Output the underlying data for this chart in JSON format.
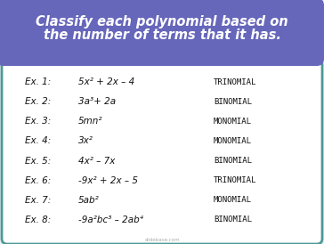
{
  "title_line1": "Classify each polynomial based on",
  "title_line2": "the number of terms that it has.",
  "title_bg_color": "#6666bb",
  "title_text_color": "#ffffff",
  "bg_color": "#ffffff",
  "outer_bg_color": "#f0f0f0",
  "border_color": "#4d9999",
  "examples": [
    {
      "label": "Ex. 1:",
      "expr": "5x² + 2x – 4",
      "answer": "TRINOMIAL"
    },
    {
      "label": "Ex. 2:",
      "expr": "3a³+ 2a",
      "answer": "BINOMIAL"
    },
    {
      "label": "Ex. 3:",
      "expr": "5mn²",
      "answer": "MONOMIAL"
    },
    {
      "label": "Ex. 4:",
      "expr": "3x²",
      "answer": "MONOMIAL"
    },
    {
      "label": "Ex. 5:",
      "expr": "4x² – 7x",
      "answer": "BINOMIAL"
    },
    {
      "label": "Ex. 6:",
      "expr": "-9x² + 2x – 5",
      "answer": "TRINOMIAL"
    },
    {
      "label": "Ex. 7:",
      "expr": "5ab²",
      "answer": "MONOMIAL"
    },
    {
      "label": "Ex. 8:",
      "expr": "-9a²bc³ – 2ab⁴",
      "answer": "BINOMIAL"
    }
  ],
  "label_fontsize": 7.5,
  "expr_fontsize": 7.5,
  "answer_fontsize": 6.5,
  "title_fontsize": 10.5,
  "watermark": "slidebase.com",
  "watermark_color": "#aaaaaa",
  "watermark_fontsize": 4
}
